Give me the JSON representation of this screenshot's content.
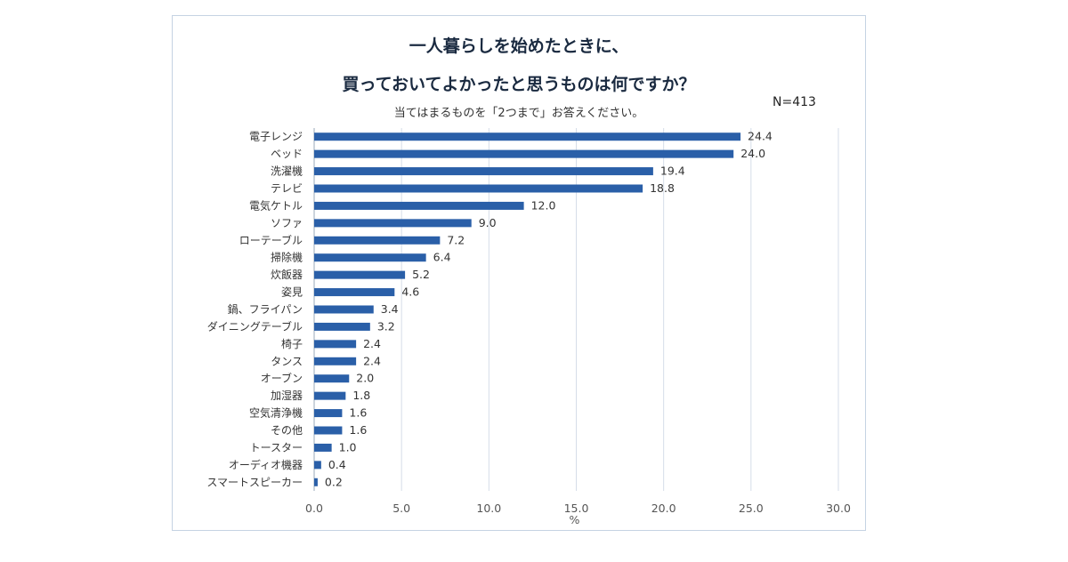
{
  "chart_data": {
    "type": "bar",
    "orientation": "horizontal",
    "title_line1": "一人暮らしを始めたときに、",
    "title_line2": "買っておいてよかったと思うものは何ですか？",
    "subtitle": "当てはまるものを「2つまで」お答えください。",
    "n_label": "N=413",
    "xlabel": "%",
    "xlim": [
      0,
      30
    ],
    "xticks": [
      "0.0",
      "5.0",
      "10.0",
      "15.0",
      "20.0",
      "25.0",
      "30.0"
    ],
    "grid": true,
    "bar_color": "#2a5fa8",
    "categories": [
      "電子レンジ",
      "ベッド",
      "洗濯機",
      "テレビ",
      "電気ケトル",
      "ソファ",
      "ローテーブル",
      "掃除機",
      "炊飯器",
      "姿見",
      "鍋、フライパン",
      "ダイニングテーブル",
      "椅子",
      "タンス",
      "オーブン",
      "加湿器",
      "空気清浄機",
      "その他",
      "トースター",
      "オーディオ機器",
      "スマートスピーカー"
    ],
    "values": [
      24.4,
      24.0,
      19.4,
      18.8,
      12.0,
      9.0,
      7.2,
      6.4,
      5.2,
      4.6,
      3.4,
      3.2,
      2.4,
      2.4,
      2.0,
      1.8,
      1.6,
      1.6,
      1.0,
      0.4,
      0.2
    ],
    "value_labels": [
      "24.4",
      "24.0",
      "19.4",
      "18.8",
      "12.0",
      "9.0",
      "7.2",
      "6.4",
      "5.2",
      "4.6",
      "3.4",
      "3.2",
      "2.4",
      "2.4",
      "2.0",
      "1.8",
      "1.6",
      "1.6",
      "1.0",
      "0.4",
      "0.2"
    ]
  }
}
